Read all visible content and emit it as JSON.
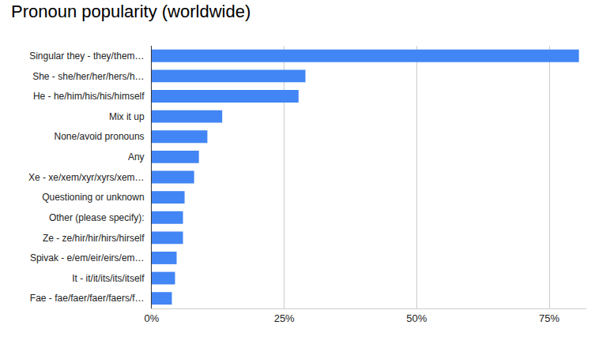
{
  "chart_data": {
    "type": "bar",
    "orientation": "horizontal",
    "title": "Pronoun popularity (worldwide)",
    "categories": [
      "Singular they - they/them…",
      "She - she/her/her/hers/h…",
      "He - he/him/his/his/himself",
      "Mix it up",
      "None/avoid pronouns",
      "Any",
      "Xe - xe/xem/xyr/xyrs/xem…",
      "Questioning or unknown",
      "Other (please specify):",
      "Ze - ze/hir/hir/hirs/hirself",
      "Spivak - e/em/eir/eirs/em…",
      "It - it/it/its/its/itself",
      "Fae - fae/faer/faer/faers/f…"
    ],
    "values": [
      80.6,
      29.0,
      27.7,
      13.3,
      10.5,
      8.9,
      8.0,
      6.2,
      5.9,
      5.9,
      4.7,
      4.4,
      3.8
    ],
    "color": "#4285f4",
    "xlim": [
      0,
      82
    ],
    "xticks": [
      {
        "value": 0,
        "label": "0%"
      },
      {
        "value": 25,
        "label": "25%"
      },
      {
        "value": 50,
        "label": "50%"
      },
      {
        "value": 75,
        "label": "75%"
      }
    ],
    "grid": true
  }
}
